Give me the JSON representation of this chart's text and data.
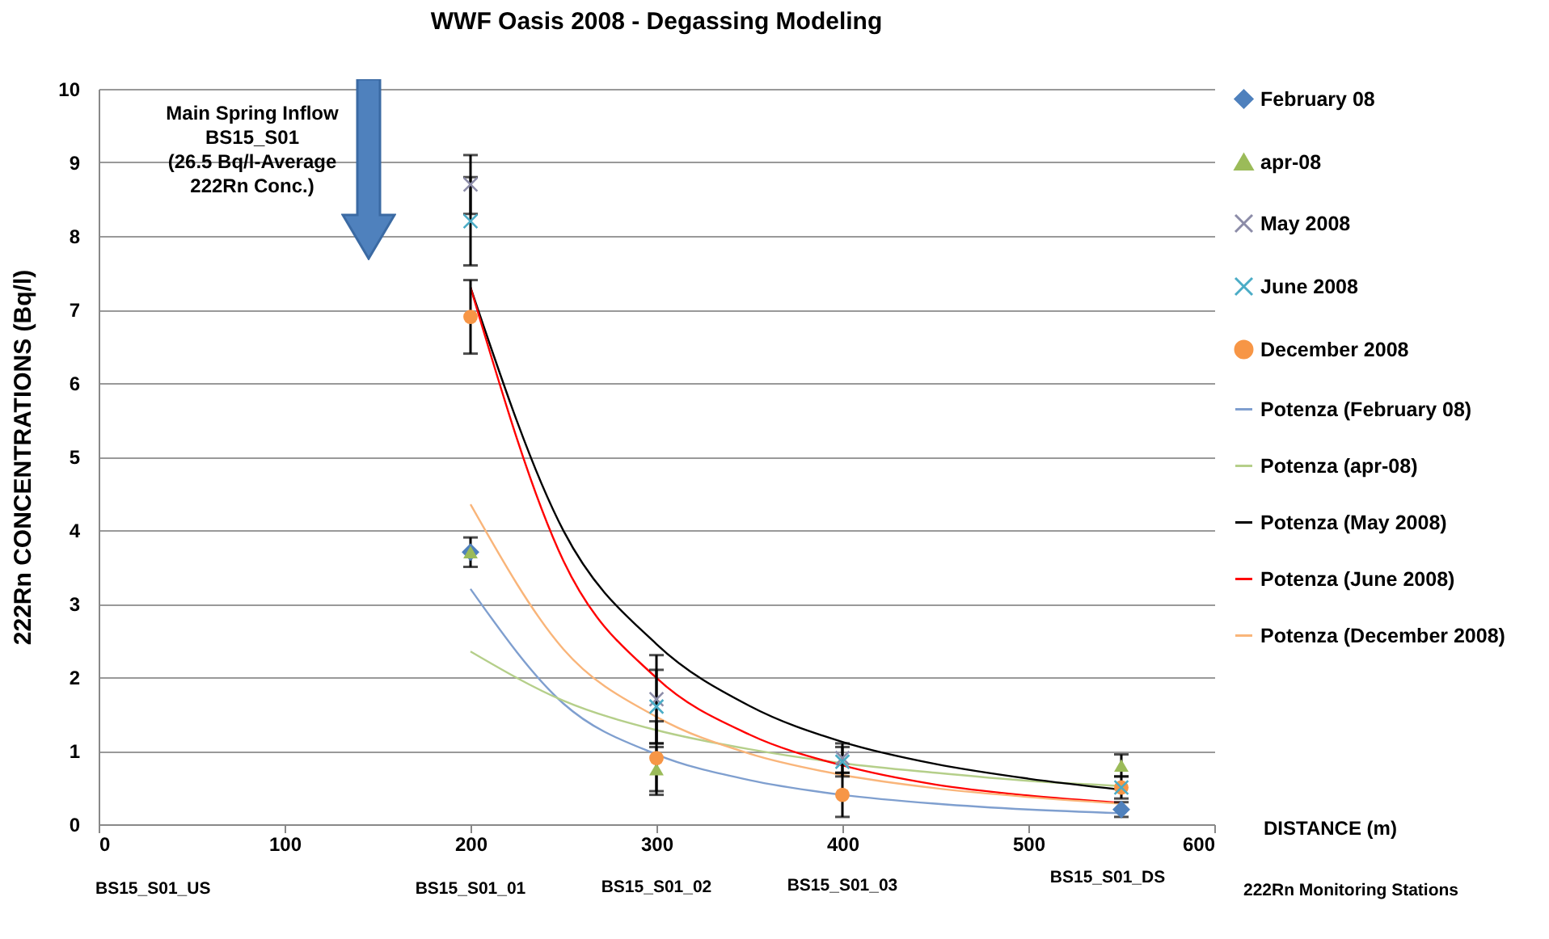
{
  "chart_data": {
    "type": "scatter",
    "title": "WWF Oasis 2008 - Degassing Modeling",
    "xlabel": "DISTANCE (m)",
    "ylabel": "222Rn CONCENTRATIONS (Bq/l)",
    "xlim": [
      0,
      600
    ],
    "xticks": [
      0,
      100,
      200,
      300,
      400,
      500,
      600
    ],
    "ylim": [
      0,
      10
    ],
    "yticks": [
      0,
      1,
      2,
      3,
      4,
      5,
      6,
      7,
      8,
      9,
      10
    ],
    "grid": "y",
    "legend": "right",
    "series": [
      {
        "name": "February 08",
        "marker": "diamond",
        "color": "#4f81bd",
        "x": [
          200,
          550
        ],
        "values": [
          3.7,
          0.2
        ],
        "errors": [
          0.2,
          0.1
        ]
      },
      {
        "name": "apr-08",
        "marker": "triangle",
        "color": "#9bbb59",
        "x": [
          200,
          300,
          550
        ],
        "values": [
          3.7,
          0.75,
          0.8
        ],
        "errors": [
          null,
          0.3,
          0.15
        ]
      },
      {
        "name": "May 2008",
        "marker": "cross",
        "color": "#8c8ca8",
        "x": [
          200,
          300,
          400
        ],
        "values": [
          8.7,
          1.7,
          0.9
        ],
        "errors": [
          0.4,
          0.6,
          0.2
        ]
      },
      {
        "name": "June 2008",
        "marker": "cross",
        "color": "#4bacc6",
        "x": [
          200,
          300,
          400,
          550
        ],
        "values": [
          8.2,
          1.6,
          0.85,
          0.5
        ],
        "errors": [
          0.6,
          0.5,
          0.2,
          0.15
        ]
      },
      {
        "name": "December 2008",
        "marker": "circle",
        "color": "#f79646",
        "x": [
          200,
          300,
          400,
          550
        ],
        "values": [
          6.9,
          0.9,
          0.4,
          0.5
        ],
        "errors": [
          0.5,
          0.5,
          0.3,
          null
        ]
      },
      {
        "name": "Potenza (February 08)",
        "type": "line",
        "color": "#7f9fcf",
        "x": [
          200,
          250,
          300,
          350,
          400,
          450,
          500,
          550
        ],
        "values": [
          3.2,
          1.64,
          0.95,
          0.6,
          0.4,
          0.28,
          0.2,
          0.15
        ]
      },
      {
        "name": "Potenza (apr-08)",
        "type": "line",
        "color": "#b5cf8a",
        "x": [
          200,
          250,
          300,
          350,
          400,
          450,
          500,
          550
        ],
        "values": [
          2.35,
          1.68,
          1.28,
          1.02,
          0.83,
          0.7,
          0.59,
          0.52
        ]
      },
      {
        "name": "Potenza (May 2008)",
        "type": "line",
        "color": "#000000",
        "x": [
          200,
          250,
          300,
          350,
          400,
          450,
          500,
          550
        ],
        "values": [
          7.3,
          3.99,
          2.45,
          1.61,
          1.12,
          0.82,
          0.62,
          0.47
        ]
      },
      {
        "name": "Potenza (June 2008)",
        "type": "line",
        "color": "#ff0000",
        "x": [
          200,
          250,
          300,
          350,
          400,
          450,
          500,
          550
        ],
        "values": [
          7.3,
          3.58,
          1.99,
          1.22,
          0.8,
          0.54,
          0.39,
          0.29
        ]
      },
      {
        "name": "Potenza (December 2008)",
        "type": "line",
        "color": "#f9b57a",
        "x": [
          200,
          250,
          300,
          350,
          400,
          450,
          500,
          550
        ],
        "values": [
          4.35,
          2.38,
          1.46,
          0.96,
          0.67,
          0.49,
          0.37,
          0.28
        ]
      }
    ],
    "annotations": [
      "Main Spring Inflow\nBS15_S01\n(26.5 Bq/l-Average\n222Rn Conc.)",
      "BS15_S01_US",
      "BS15_S01_01",
      "BS15_S01_02",
      "BS15_S01_03",
      "BS15_S01_DS",
      "222Rn Monitoring Stations"
    ]
  }
}
